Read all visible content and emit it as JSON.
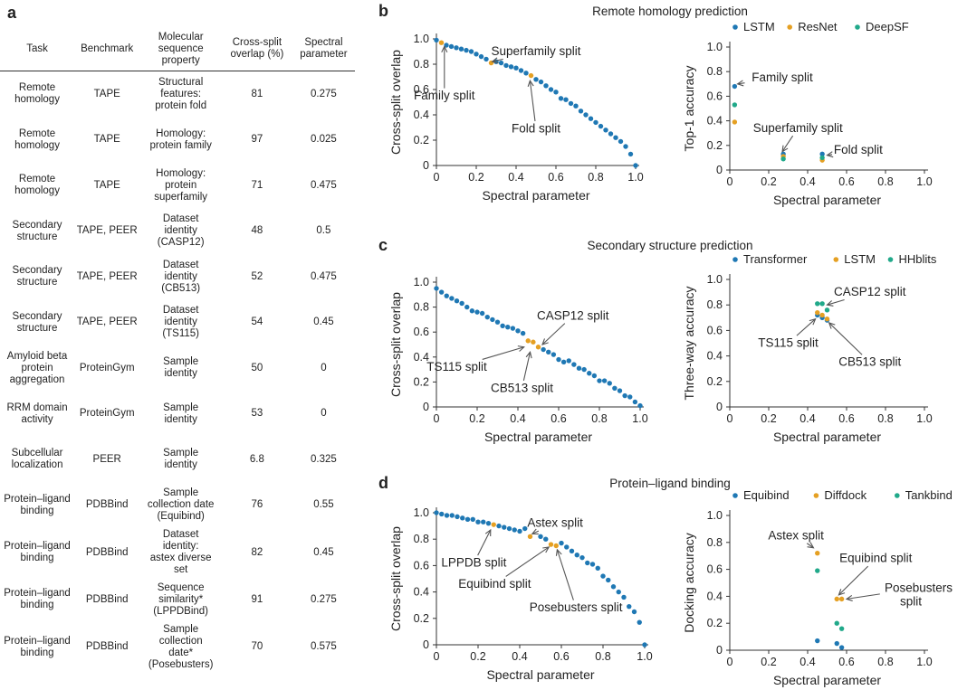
{
  "panels": {
    "a": "a",
    "b": "b",
    "c": "c",
    "d": "d"
  },
  "table": {
    "headers": [
      "Task",
      "Benchmark",
      "Molecular\nsequence\nproperty",
      "Cross-split\noverlap (%)",
      "Spectral\nparameter"
    ],
    "rows": [
      [
        "Remote\nhomology",
        "TAPE",
        "Structural\nfeatures:\nprotein fold",
        "81",
        "0.275"
      ],
      [
        "Remote\nhomology",
        "TAPE",
        "Homology:\nprotein family",
        "97",
        "0.025"
      ],
      [
        "Remote\nhomology",
        "TAPE",
        "Homology:\nprotein\nsuperfamily",
        "71",
        "0.475"
      ],
      [
        "Secondary\nstructure",
        "TAPE, PEER",
        "Dataset\nidentity\n(CASP12)",
        "48",
        "0.5"
      ],
      [
        "Secondary\nstructure",
        "TAPE, PEER",
        "Dataset\nidentity\n(CB513)",
        "52",
        "0.475"
      ],
      [
        "Secondary\nstructure",
        "TAPE, PEER",
        "Dataset\nidentity\n(TS115)",
        "54",
        "0.45"
      ],
      [
        "Amyloid beta\nprotein\naggregation",
        "ProteinGym",
        "Sample\nidentity",
        "50",
        "0"
      ],
      [
        "RRM domain\nactivity",
        "ProteinGym",
        "Sample\nidentity",
        "53",
        "0"
      ],
      [
        "Subcellular\nlocalization",
        "PEER",
        "Sample\nidentity",
        "6.8",
        "0.325"
      ],
      [
        "Protein–ligand\nbinding",
        "PDBBind",
        "Sample\ncollection date\n(Equibind)",
        "76",
        "0.55"
      ],
      [
        "Protein–ligand\nbinding",
        "PDBBind",
        "Dataset\nidentity:\nastex diverse\nset",
        "82",
        "0.45"
      ],
      [
        "Protein–ligand\nbinding",
        "PDBBind",
        "Sequence\nsimilarity*\n(LPPDBind)",
        "91",
        "0.275"
      ],
      [
        "Protein–ligand\nbinding",
        "PDBBind",
        "Sample\ncollection\ndate*\n(Posebusters)",
        "70",
        "0.575"
      ]
    ]
  },
  "sections": {
    "b": "Remote homology prediction",
    "c": "Secondary structure prediction",
    "d": "Protein–ligand binding"
  },
  "colors": {
    "blue": "#1f78b4",
    "orange": "#e5a023",
    "green": "#21a98a"
  },
  "chart_data": [
    {
      "id": "b_left",
      "type": "scatter",
      "xlabel": "Spectral parameter",
      "ylabel": "Cross-split overlap",
      "xlim": [
        0,
        1
      ],
      "ylim": [
        0,
        1
      ],
      "xticks": [
        "0",
        "0.2",
        "0.4",
        "0.6",
        "0.8",
        "1.0"
      ],
      "yticks": [
        "0",
        "0.2",
        "0.4",
        "0.6",
        "0.8",
        "1.0"
      ],
      "series": [
        {
          "color": "blue",
          "x": [
            0,
            0.05,
            0.075,
            0.1,
            0.125,
            0.15,
            0.175,
            0.2,
            0.225,
            0.25,
            0.3,
            0.325,
            0.35,
            0.375,
            0.4,
            0.425,
            0.45,
            0.5,
            0.525,
            0.55,
            0.575,
            0.6,
            0.625,
            0.65,
            0.675,
            0.7,
            0.725,
            0.75,
            0.775,
            0.8,
            0.825,
            0.85,
            0.875,
            0.9,
            0.925,
            0.95,
            0.975,
            1.0
          ],
          "y": [
            0.99,
            0.95,
            0.94,
            0.93,
            0.92,
            0.91,
            0.9,
            0.88,
            0.86,
            0.84,
            0.82,
            0.81,
            0.79,
            0.78,
            0.77,
            0.75,
            0.73,
            0.68,
            0.66,
            0.63,
            0.6,
            0.58,
            0.53,
            0.52,
            0.49,
            0.47,
            0.43,
            0.4,
            0.37,
            0.34,
            0.31,
            0.28,
            0.25,
            0.22,
            0.19,
            0.15,
            0.09,
            0.0
          ]
        },
        {
          "color": "orange",
          "x": [
            0.025,
            0.275,
            0.475
          ],
          "y": [
            0.97,
            0.81,
            0.71
          ]
        }
      ],
      "annotations": [
        {
          "text": "Superfamily split",
          "tx": 0.5,
          "ty": 0.9,
          "ax": 0.28,
          "ay": 0.82
        },
        {
          "text": "Family split",
          "tx": 0.04,
          "ty": 0.55,
          "ax": 0.04,
          "ay": 0.94
        },
        {
          "text": "Fold split",
          "tx": 0.5,
          "ty": 0.29,
          "ax": 0.47,
          "ay": 0.67
        }
      ]
    },
    {
      "id": "b_right",
      "type": "scatter",
      "xlabel": "Spectral parameter",
      "ylabel": "Top-1 accuracy",
      "xlim": [
        0,
        1
      ],
      "ylim": [
        0,
        1
      ],
      "xticks": [
        "0",
        "0.2",
        "0.4",
        "0.6",
        "0.8",
        "1.0"
      ],
      "yticks": [
        "0",
        "0.2",
        "0.4",
        "0.6",
        "0.8",
        "1.0"
      ],
      "legend": [
        {
          "name": "LSTM",
          "color": "blue"
        },
        {
          "name": "ResNet",
          "color": "orange"
        },
        {
          "name": "DeepSF",
          "color": "green"
        }
      ],
      "series": [
        {
          "color": "blue",
          "x": [
            0.025,
            0.275,
            0.475
          ],
          "y": [
            0.68,
            0.13,
            0.13
          ]
        },
        {
          "color": "orange",
          "x": [
            0.025,
            0.275,
            0.475
          ],
          "y": [
            0.39,
            0.11,
            0.08
          ]
        },
        {
          "color": "green",
          "x": [
            0.025,
            0.275,
            0.475
          ],
          "y": [
            0.53,
            0.09,
            0.1
          ]
        }
      ],
      "annotations": [
        {
          "text": "Family split",
          "tx": 0.27,
          "ty": 0.75,
          "ax": 0.04,
          "ay": 0.7
        },
        {
          "text": "Superfamily split",
          "tx": 0.35,
          "ty": 0.34,
          "ax": 0.27,
          "ay": 0.15
        },
        {
          "text": "Fold split",
          "tx": 0.66,
          "ty": 0.16,
          "ax": 0.5,
          "ay": 0.12
        }
      ]
    },
    {
      "id": "c_left",
      "type": "scatter",
      "xlabel": "Spectral parameter",
      "ylabel": "Cross-split overlap",
      "xlim": [
        0,
        1
      ],
      "ylim": [
        0,
        1
      ],
      "xticks": [
        "0",
        "0.2",
        "0.4",
        "0.6",
        "0.8",
        "1.0"
      ],
      "yticks": [
        "0",
        "0.2",
        "0.4",
        "0.6",
        "0.8",
        "1.0"
      ],
      "series": [
        {
          "color": "blue",
          "x": [
            0,
            0.025,
            0.05,
            0.075,
            0.1,
            0.125,
            0.15,
            0.175,
            0.2,
            0.225,
            0.25,
            0.275,
            0.3,
            0.325,
            0.35,
            0.375,
            0.4,
            0.425,
            0.525,
            0.55,
            0.575,
            0.6,
            0.625,
            0.65,
            0.675,
            0.7,
            0.725,
            0.75,
            0.775,
            0.8,
            0.825,
            0.85,
            0.875,
            0.9,
            0.925,
            0.95,
            0.975,
            1.0
          ],
          "y": [
            0.95,
            0.92,
            0.89,
            0.87,
            0.85,
            0.83,
            0.8,
            0.77,
            0.76,
            0.75,
            0.72,
            0.7,
            0.68,
            0.65,
            0.64,
            0.63,
            0.61,
            0.59,
            0.46,
            0.44,
            0.42,
            0.38,
            0.36,
            0.37,
            0.34,
            0.31,
            0.3,
            0.27,
            0.25,
            0.21,
            0.21,
            0.19,
            0.15,
            0.13,
            0.09,
            0.08,
            0.04,
            0.01
          ]
        },
        {
          "color": "orange",
          "x": [
            0.45,
            0.475,
            0.5
          ],
          "y": [
            0.53,
            0.52,
            0.48
          ]
        }
      ],
      "annotations": [
        {
          "text": "CASP12 split",
          "tx": 0.67,
          "ty": 0.73,
          "ax": 0.52,
          "ay": 0.5
        },
        {
          "text": "TS115 split",
          "tx": 0.1,
          "ty": 0.32,
          "ax": 0.43,
          "ay": 0.48
        },
        {
          "text": "CB513 split",
          "tx": 0.42,
          "ty": 0.15,
          "ax": 0.46,
          "ay": 0.44
        }
      ]
    },
    {
      "id": "c_right",
      "type": "scatter",
      "xlabel": "Spectral parameter",
      "ylabel": "Three-way accuracy",
      "xlim": [
        0,
        1
      ],
      "ylim": [
        0,
        1
      ],
      "xticks": [
        "0",
        "0.2",
        "0.4",
        "0.6",
        "0.8",
        "1.0"
      ],
      "yticks": [
        "0",
        "0.2",
        "0.4",
        "0.6",
        "0.8",
        "1.0"
      ],
      "legend": [
        {
          "name": "Transformer",
          "color": "blue"
        },
        {
          "name": "LSTM",
          "color": "orange"
        },
        {
          "name": "HHblits",
          "color": "green"
        }
      ],
      "series": [
        {
          "color": "blue",
          "x": [
            0.45,
            0.475,
            0.5
          ],
          "y": [
            0.72,
            0.7,
            0.68
          ]
        },
        {
          "color": "orange",
          "x": [
            0.45,
            0.475,
            0.5
          ],
          "y": [
            0.74,
            0.72,
            0.69
          ]
        },
        {
          "color": "green",
          "x": [
            0.45,
            0.475,
            0.5
          ],
          "y": [
            0.81,
            0.81,
            0.76
          ]
        }
      ],
      "annotations": [
        {
          "text": "CASP12 split",
          "tx": 0.72,
          "ty": 0.9,
          "ax": 0.5,
          "ay": 0.8
        },
        {
          "text": "TS115 split",
          "tx": 0.3,
          "ty": 0.5,
          "ax": 0.44,
          "ay": 0.69
        },
        {
          "text": "CB513 split",
          "tx": 0.72,
          "ty": 0.35,
          "ax": 0.51,
          "ay": 0.66
        }
      ]
    },
    {
      "id": "d_left",
      "type": "scatter",
      "xlabel": "Spectral parameter",
      "ylabel": "Cross-split overlap",
      "xlim": [
        0,
        1
      ],
      "ylim": [
        0,
        1
      ],
      "xticks": [
        "0",
        "0.2",
        "0.4",
        "0.6",
        "0.8",
        "1.0"
      ],
      "yticks": [
        "0",
        "0.2",
        "0.4",
        "0.6",
        "0.8",
        "1.0"
      ],
      "series": [
        {
          "color": "blue",
          "x": [
            0,
            0.025,
            0.05,
            0.075,
            0.1,
            0.125,
            0.15,
            0.175,
            0.2,
            0.225,
            0.25,
            0.3,
            0.325,
            0.35,
            0.375,
            0.4,
            0.425,
            0.5,
            0.525,
            0.6,
            0.625,
            0.65,
            0.675,
            0.7,
            0.725,
            0.75,
            0.775,
            0.8,
            0.825,
            0.85,
            0.875,
            0.9,
            0.925,
            0.95,
            0.975,
            1.0
          ],
          "y": [
            1.0,
            0.99,
            0.98,
            0.98,
            0.97,
            0.96,
            0.95,
            0.95,
            0.93,
            0.93,
            0.92,
            0.9,
            0.89,
            0.88,
            0.87,
            0.86,
            0.88,
            0.82,
            0.8,
            0.77,
            0.74,
            0.71,
            0.68,
            0.66,
            0.62,
            0.61,
            0.58,
            0.52,
            0.49,
            0.44,
            0.4,
            0.36,
            0.29,
            0.25,
            0.17,
            0.0
          ]
        },
        {
          "color": "orange",
          "x": [
            0.275,
            0.45,
            0.55,
            0.575
          ],
          "y": [
            0.91,
            0.82,
            0.76,
            0.75
          ]
        }
      ],
      "annotations": [
        {
          "text": "Astex split",
          "tx": 0.57,
          "ty": 0.92,
          "ax": 0.46,
          "ay": 0.84
        },
        {
          "text": "LPPDB split",
          "tx": 0.18,
          "ty": 0.62,
          "ax": 0.26,
          "ay": 0.87
        },
        {
          "text": "Equibind split",
          "tx": 0.28,
          "ty": 0.46,
          "ax": 0.54,
          "ay": 0.74
        },
        {
          "text": "Posebusters split",
          "tx": 0.67,
          "ty": 0.28,
          "ax": 0.58,
          "ay": 0.72
        }
      ]
    },
    {
      "id": "d_right",
      "type": "scatter",
      "xlabel": "Spectral parameter",
      "ylabel": "Docking accuracy",
      "xlim": [
        0,
        1
      ],
      "ylim": [
        0,
        1
      ],
      "xticks": [
        "0",
        "0.2",
        "0.4",
        "0.6",
        "0.8",
        "1.0"
      ],
      "yticks": [
        "0",
        "0.2",
        "0.4",
        "0.6",
        "0.8",
        "1.0"
      ],
      "legend": [
        {
          "name": "Equibind",
          "color": "blue"
        },
        {
          "name": "Diffdock",
          "color": "orange"
        },
        {
          "name": "Tankbind",
          "color": "green"
        }
      ],
      "series": [
        {
          "color": "blue",
          "x": [
            0.45,
            0.55,
            0.575
          ],
          "y": [
            0.07,
            0.05,
            0.02
          ]
        },
        {
          "color": "orange",
          "x": [
            0.45,
            0.55,
            0.575
          ],
          "y": [
            0.72,
            0.38,
            0.38
          ]
        },
        {
          "color": "green",
          "x": [
            0.45,
            0.55,
            0.575
          ],
          "y": [
            0.59,
            0.2,
            0.16
          ]
        }
      ],
      "annotations": [
        {
          "text": "Astex split",
          "tx": 0.34,
          "ty": 0.85,
          "ax": 0.43,
          "ay": 0.76
        },
        {
          "text": "Equibind split",
          "tx": 0.75,
          "ty": 0.68,
          "ax": 0.56,
          "ay": 0.41
        },
        {
          "text": "Posebusters",
          "tx": 0.97,
          "ty": 0.46,
          "ax": 0.6,
          "ay": 0.38
        },
        {
          "text": "split",
          "tx": 0.93,
          "ty": 0.36,
          "ax": null,
          "ay": null
        }
      ]
    }
  ]
}
